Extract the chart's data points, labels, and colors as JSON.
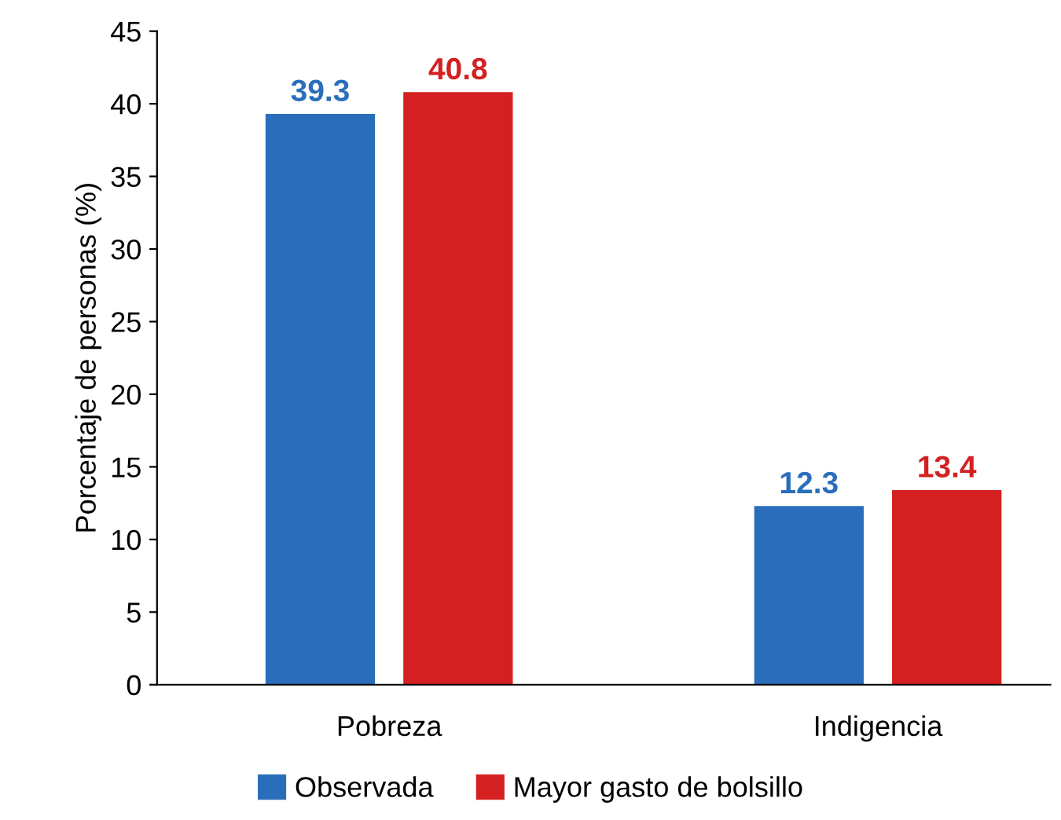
{
  "chart_data": {
    "type": "bar",
    "ylabel": "Porcentaje de personas (%)",
    "categories": [
      "Pobreza",
      "Indigencia"
    ],
    "series": [
      {
        "name": "Observada",
        "color": "#2a6ebb",
        "values": [
          39.3,
          12.3
        ]
      },
      {
        "name": "Mayor gasto de bolsillo",
        "color": "#d42020",
        "values": [
          40.8,
          13.4
        ]
      }
    ],
    "ylim": [
      0,
      45
    ],
    "yticks": [
      0,
      5,
      10,
      15,
      20,
      25,
      30,
      35,
      40,
      45
    ],
    "data_labels": true,
    "grid": false,
    "legend": "bottom"
  }
}
